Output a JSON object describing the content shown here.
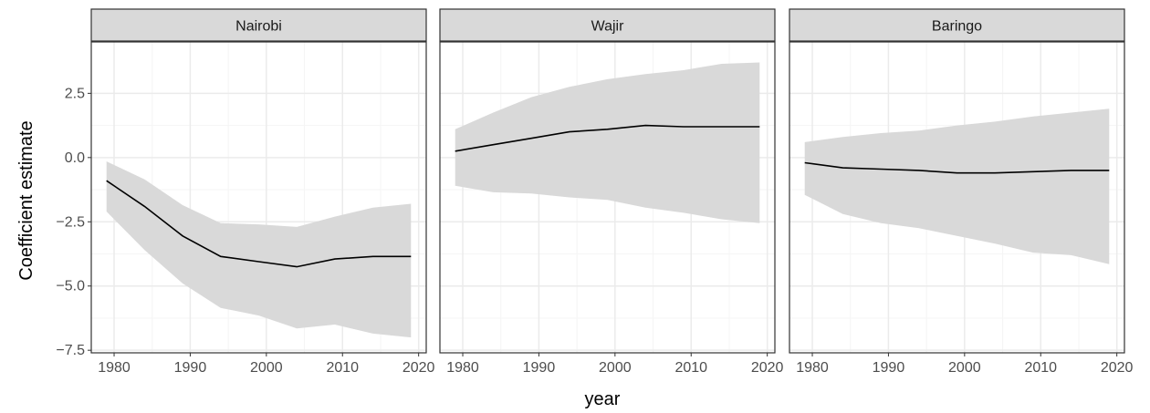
{
  "chart_data": {
    "type": "line",
    "xlabel": "year",
    "ylabel": "Coefficient estimate",
    "xlim": [
      1977,
      2021
    ],
    "ylim": [
      -7.6,
      4.5
    ],
    "x_ticks": [
      1980,
      1990,
      2000,
      2010,
      2020
    ],
    "x_tick_labels": [
      "1980",
      "1990",
      "2000",
      "2010",
      "2020"
    ],
    "y_ticks": [
      2.5,
      0.0,
      -2.5,
      -5.0,
      -7.5
    ],
    "y_tick_labels": [
      "2.5",
      "0.0",
      "−2.5",
      "−5.0",
      "−7.5"
    ],
    "grid": true,
    "colors": {
      "line": "#000000",
      "ribbon": "#d9d9d9",
      "strip": "#d9d9d9",
      "grid_major": "#ebebeb",
      "grid_minor": "#f5f5f5",
      "border": "#333333"
    },
    "panels": [
      {
        "title": "Nairobi",
        "x": [
          1979,
          1984,
          1989,
          1994,
          1999,
          2004,
          2009,
          2014,
          2019
        ],
        "estimate": [
          -0.9,
          -1.9,
          -3.05,
          -3.85,
          -4.05,
          -4.25,
          -3.95,
          -3.85,
          -3.85
        ],
        "lower": [
          -2.1,
          -3.6,
          -4.9,
          -5.85,
          -6.15,
          -6.65,
          -6.5,
          -6.85,
          -7.0
        ],
        "upper": [
          -0.15,
          -0.85,
          -1.85,
          -2.55,
          -2.6,
          -2.7,
          -2.3,
          -1.95,
          -1.8
        ]
      },
      {
        "title": "Wajir",
        "x": [
          1979,
          1984,
          1989,
          1994,
          1999,
          2004,
          2009,
          2014,
          2019
        ],
        "estimate": [
          0.25,
          0.5,
          0.75,
          1.0,
          1.1,
          1.25,
          1.2,
          1.2,
          1.2
        ],
        "lower": [
          -1.1,
          -1.35,
          -1.4,
          -1.55,
          -1.65,
          -1.95,
          -2.15,
          -2.4,
          -2.55
        ],
        "upper": [
          1.1,
          1.75,
          2.35,
          2.75,
          3.05,
          3.25,
          3.4,
          3.65,
          3.7
        ]
      },
      {
        "title": "Baringo",
        "x": [
          1979,
          1984,
          1989,
          1994,
          1999,
          2004,
          2009,
          2014,
          2019
        ],
        "estimate": [
          -0.2,
          -0.4,
          -0.45,
          -0.5,
          -0.6,
          -0.6,
          -0.55,
          -0.5,
          -0.5
        ],
        "lower": [
          -1.45,
          -2.2,
          -2.55,
          -2.75,
          -3.05,
          -3.35,
          -3.7,
          -3.8,
          -4.15
        ],
        "upper": [
          0.6,
          0.8,
          0.95,
          1.05,
          1.25,
          1.4,
          1.6,
          1.75,
          1.9
        ]
      }
    ]
  }
}
